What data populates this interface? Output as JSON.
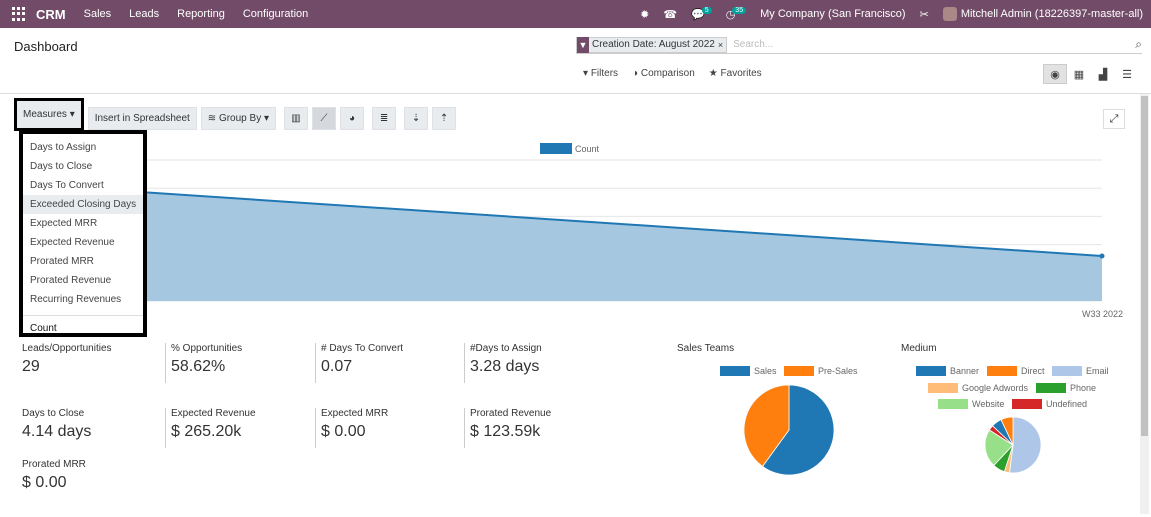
{
  "nav": {
    "brand": "CRM",
    "menus": [
      "Sales",
      "Leads",
      "Reporting",
      "Configuration"
    ],
    "messages_badge": "5",
    "activities_badge": "35",
    "company": "My Company (San Francisco)",
    "user": "Mitchell Admin (18226397-master-all)"
  },
  "control": {
    "title": "Dashboard",
    "facet": "Creation Date: August 2022",
    "search_placeholder": "Search...",
    "filters": "Filters",
    "comparison": "Comparison",
    "favorites": "Favorites"
  },
  "toolbar": {
    "measures": "Measures",
    "insert": "Insert in Spreadsheet",
    "group_by": "Group By"
  },
  "measures_menu": {
    "items": [
      "Days to Assign",
      "Days to Close",
      "Days To Convert",
      "Exceeded Closing Days",
      "Expected MRR",
      "Expected Revenue",
      "Prorated MRR",
      "Prorated Revenue",
      "Recurring Revenues"
    ],
    "highlighted": "Exceeded Closing Days",
    "count": "Count"
  },
  "chart_data": {
    "type": "area",
    "legend": [
      "Count"
    ],
    "x_tick": "W33 2022",
    "series": [
      {
        "name": "Count",
        "color": "#1f77b4",
        "fill": "#a6c7e0"
      }
    ],
    "grid": true,
    "legend_position": "top-center"
  },
  "kpis": [
    {
      "label": "Leads/Opportunities",
      "value": "29"
    },
    {
      "label": "% Opportunities",
      "value": "58.62%"
    },
    {
      "label": "# Days To Convert",
      "value": "0.07"
    },
    {
      "label": "#Days to Assign",
      "value": "3.28 days"
    },
    {
      "label": "Days to Close",
      "value": "4.14 days"
    },
    {
      "label": "Expected Revenue",
      "value": "$ 265.20k"
    },
    {
      "label": "Expected MRR",
      "value": "$ 0.00"
    },
    {
      "label": "Prorated Revenue",
      "value": "$ 123.59k"
    },
    {
      "label": "Prorated MRR",
      "value": "$ 0.00"
    }
  ],
  "sales_teams": {
    "title": "Sales Teams",
    "legend": [
      {
        "name": "Sales",
        "color": "#1f77b4"
      },
      {
        "name": "Pre-Sales",
        "color": "#ff7f0e"
      }
    ],
    "slices": [
      {
        "name": "Sales",
        "fraction": 0.6
      },
      {
        "name": "Pre-Sales",
        "fraction": 0.4
      }
    ]
  },
  "medium": {
    "title": "Medium",
    "legend": [
      {
        "name": "Banner",
        "color": "#1f77b4"
      },
      {
        "name": "Direct",
        "color": "#ff7f0e"
      },
      {
        "name": "Email",
        "color": "#aec7e8"
      },
      {
        "name": "Google Adwords",
        "color": "#ffbb78"
      },
      {
        "name": "Phone",
        "color": "#2ca02c"
      },
      {
        "name": "Website",
        "color": "#98df8a"
      },
      {
        "name": "Undefined",
        "color": "#d62728"
      }
    ],
    "slices": [
      {
        "name": "Email",
        "fraction": 0.52
      },
      {
        "name": "Google Adwords",
        "fraction": 0.03
      },
      {
        "name": "Phone",
        "fraction": 0.07
      },
      {
        "name": "Website",
        "fraction": 0.22
      },
      {
        "name": "Undefined",
        "fraction": 0.03
      },
      {
        "name": "Banner",
        "fraction": 0.06
      },
      {
        "name": "Direct",
        "fraction": 0.07
      }
    ]
  }
}
